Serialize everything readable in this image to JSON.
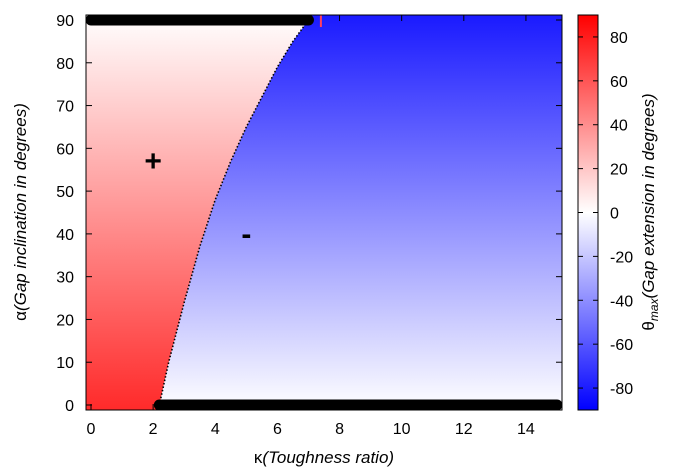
{
  "chart_data": {
    "type": "heatmap",
    "xlabel_symbol": "κ",
    "xlabel_text": "(Toughness ratio)",
    "ylabel_symbol": "α",
    "ylabel_text": "(Gap inclination in degrees)",
    "cbar_label_symbol": "θ",
    "cbar_label_sub": "max",
    "cbar_label_text": "(Gap extension in degrees)",
    "xlim": [
      0,
      15
    ],
    "ylim": [
      0,
      90
    ],
    "x_ticks": [
      0,
      2,
      4,
      6,
      8,
      10,
      12,
      14
    ],
    "y_ticks": [
      0,
      10,
      20,
      30,
      40,
      50,
      60,
      70,
      80,
      90
    ],
    "cbar_range": [
      -90,
      90
    ],
    "cbar_ticks": [
      80,
      60,
      40,
      20,
      0,
      -20,
      -40,
      -60,
      -80
    ],
    "colors": {
      "positive": "#ff0000",
      "zero": "#ffffff",
      "negative": "#0000ff"
    },
    "boundary": {
      "kappa": [
        2.2,
        2.5,
        3.0,
        3.5,
        4.0,
        4.5,
        5.0,
        5.5,
        6.0,
        6.5,
        7.0
      ],
      "alpha": [
        0,
        10,
        24,
        37,
        48,
        57,
        65,
        72,
        79,
        85,
        90
      ]
    },
    "region_labels": [
      {
        "text": "+",
        "x": 2.0,
        "y": 57
      },
      {
        "text": "-",
        "x": 5.0,
        "y": 40
      }
    ],
    "dotted_lines": [
      {
        "x": [
          0.0,
          7.0
        ],
        "y": [
          90,
          90
        ]
      },
      {
        "x": [
          2.2,
          15.0
        ],
        "y": [
          0,
          0
        ]
      }
    ],
    "marker": {
      "x": 7.4,
      "y": 90,
      "color": "#ff4060"
    }
  }
}
